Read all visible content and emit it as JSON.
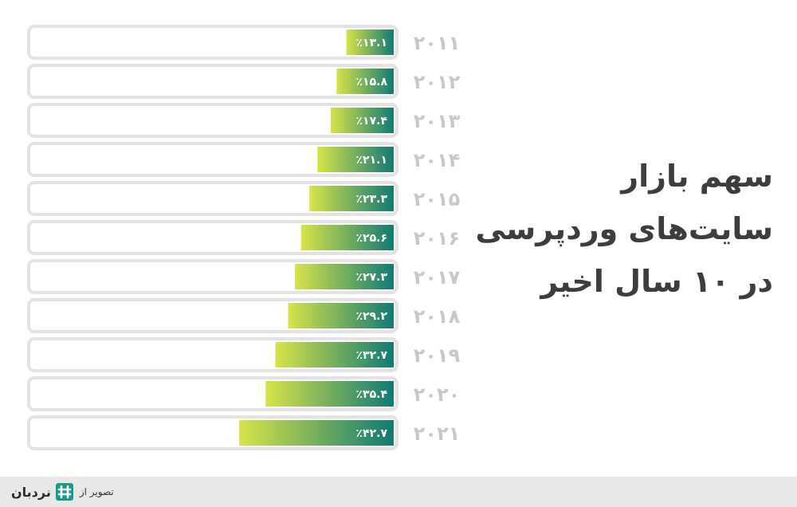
{
  "title_lines": [
    "سهم بازار",
    "سایت‌های وردپرسی",
    "در ۱۰ سال اخیر"
  ],
  "footer": {
    "credit_prefix": "تصویر از",
    "brand_name": "نردبان",
    "logo_icon": "nardeban-logo-icon"
  },
  "colors": {
    "bar_start": "#d8e349",
    "bar_end": "#117a74",
    "track_border": "#e3e3e3",
    "year_text": "#c8c8c8",
    "title_text": "#3d3d3d",
    "footer_bg": "#e8e8e8",
    "logo": "#1a9a88"
  },
  "chart_data": {
    "type": "bar",
    "orientation": "horizontal",
    "direction": "right-to-left",
    "title": "سهم بازار سایت‌های وردپرسی در ۱۰ سال اخیر",
    "xlim": [
      0,
      100
    ],
    "grid": false,
    "legend": "none",
    "categories": [
      "2011",
      "2012",
      "2013",
      "2014",
      "2015",
      "2016",
      "2017",
      "2018",
      "2019",
      "2020",
      "2021"
    ],
    "category_labels": [
      "۲۰۱۱",
      "۲۰۱۲",
      "۲۰۱۳",
      "۲۰۱۴",
      "۲۰۱۵",
      "۲۰۱۶",
      "۲۰۱۷",
      "۲۰۱۸",
      "۲۰۱۹",
      "۲۰۲۰",
      "۲۰۲۱"
    ],
    "values": [
      13.1,
      15.8,
      17.4,
      21.1,
      23.3,
      25.6,
      27.3,
      29.2,
      32.7,
      35.4,
      42.7
    ],
    "value_labels": [
      "٪۱۳.۱",
      "٪۱۵.۸",
      "٪۱۷.۴",
      "٪۲۱.۱",
      "٪۲۳.۳",
      "٪۲۵.۶",
      "٪۲۷.۳",
      "٪۲۹.۲",
      "٪۳۲.۷",
      "٪۳۵.۴",
      "٪۴۲.۷"
    ]
  }
}
